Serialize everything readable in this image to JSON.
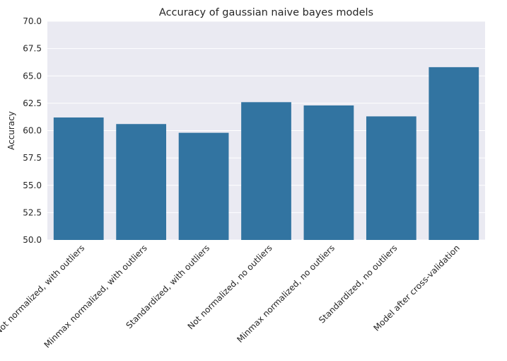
{
  "chart_data": {
    "type": "bar",
    "title": "Accuracy of gaussian naive bayes models",
    "xlabel": "",
    "ylabel": "Accuracy",
    "ylim": [
      50,
      70
    ],
    "yticks": [
      50.0,
      52.5,
      55.0,
      57.5,
      60.0,
      62.5,
      65.0,
      67.5,
      70.0
    ],
    "ytick_labels": [
      "50.0",
      "52.5",
      "55.0",
      "57.5",
      "60.0",
      "62.5",
      "65.0",
      "67.5",
      "70.0"
    ],
    "grid": true,
    "bar_color": "#3274a1",
    "background_color": "#eaeaf2",
    "categories": [
      "Not normalized, with outliers",
      "Minmax normalized, with outliers",
      "Standardized, with outliers",
      "Not normalized, no outliers",
      "Minmax normalized, no outliers",
      "Standardized, no outliers",
      "Model after cross-validation"
    ],
    "values": [
      61.2,
      60.6,
      59.8,
      62.6,
      62.3,
      61.3,
      65.8
    ]
  }
}
